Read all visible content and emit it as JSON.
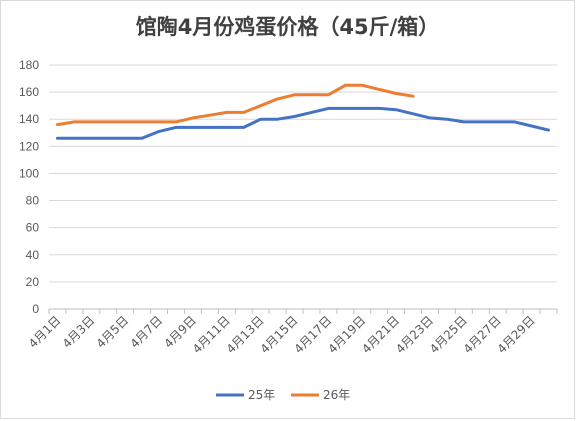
{
  "chart_data": {
    "type": "line",
    "title": "馆陶4月份鸡蛋价格（45斤/箱）",
    "xlabel": "",
    "ylabel": "",
    "ylim": [
      0,
      180
    ],
    "yticks": [
      0,
      20,
      40,
      60,
      80,
      100,
      120,
      140,
      160,
      180
    ],
    "grid": true,
    "legend_position": "bottom",
    "x": [
      "4月1日",
      "4月2日",
      "4月3日",
      "4月4日",
      "4月5日",
      "4月6日",
      "4月7日",
      "4月8日",
      "4月9日",
      "4月10日",
      "4月11日",
      "4月12日",
      "4月13日",
      "4月14日",
      "4月15日",
      "4月16日",
      "4月17日",
      "4月18日",
      "4月19日",
      "4月20日",
      "4月21日",
      "4月22日",
      "4月23日",
      "4月24日",
      "4月25日",
      "4月26日",
      "4月27日",
      "4月28日",
      "4月29日",
      "4月30日"
    ],
    "x_tick_labels": [
      "4月1日",
      "4月3日",
      "4月5日",
      "4月7日",
      "4月9日",
      "4月11日",
      "4月13日",
      "4月15日",
      "4月17日",
      "4月19日",
      "4月21日",
      "4月23日",
      "4月25日",
      "4月27日",
      "4月29日"
    ],
    "series": [
      {
        "name": "25年",
        "color": "#4472c4",
        "values": [
          126,
          126,
          126,
          126,
          126,
          126,
          131,
          134,
          134,
          134,
          134,
          134,
          140,
          140,
          142,
          145,
          148,
          148,
          148,
          148,
          147,
          144,
          141,
          140,
          138,
          138,
          138,
          138,
          135,
          132
        ]
      },
      {
        "name": "26年",
        "color": "#ed7d31",
        "values": [
          136,
          138,
          138,
          138,
          138,
          138,
          138,
          138,
          141,
          143,
          145,
          145,
          150,
          155,
          158,
          158,
          158,
          165,
          165,
          162,
          159,
          157,
          null,
          null,
          null,
          null,
          null,
          null,
          null,
          null
        ]
      }
    ]
  }
}
